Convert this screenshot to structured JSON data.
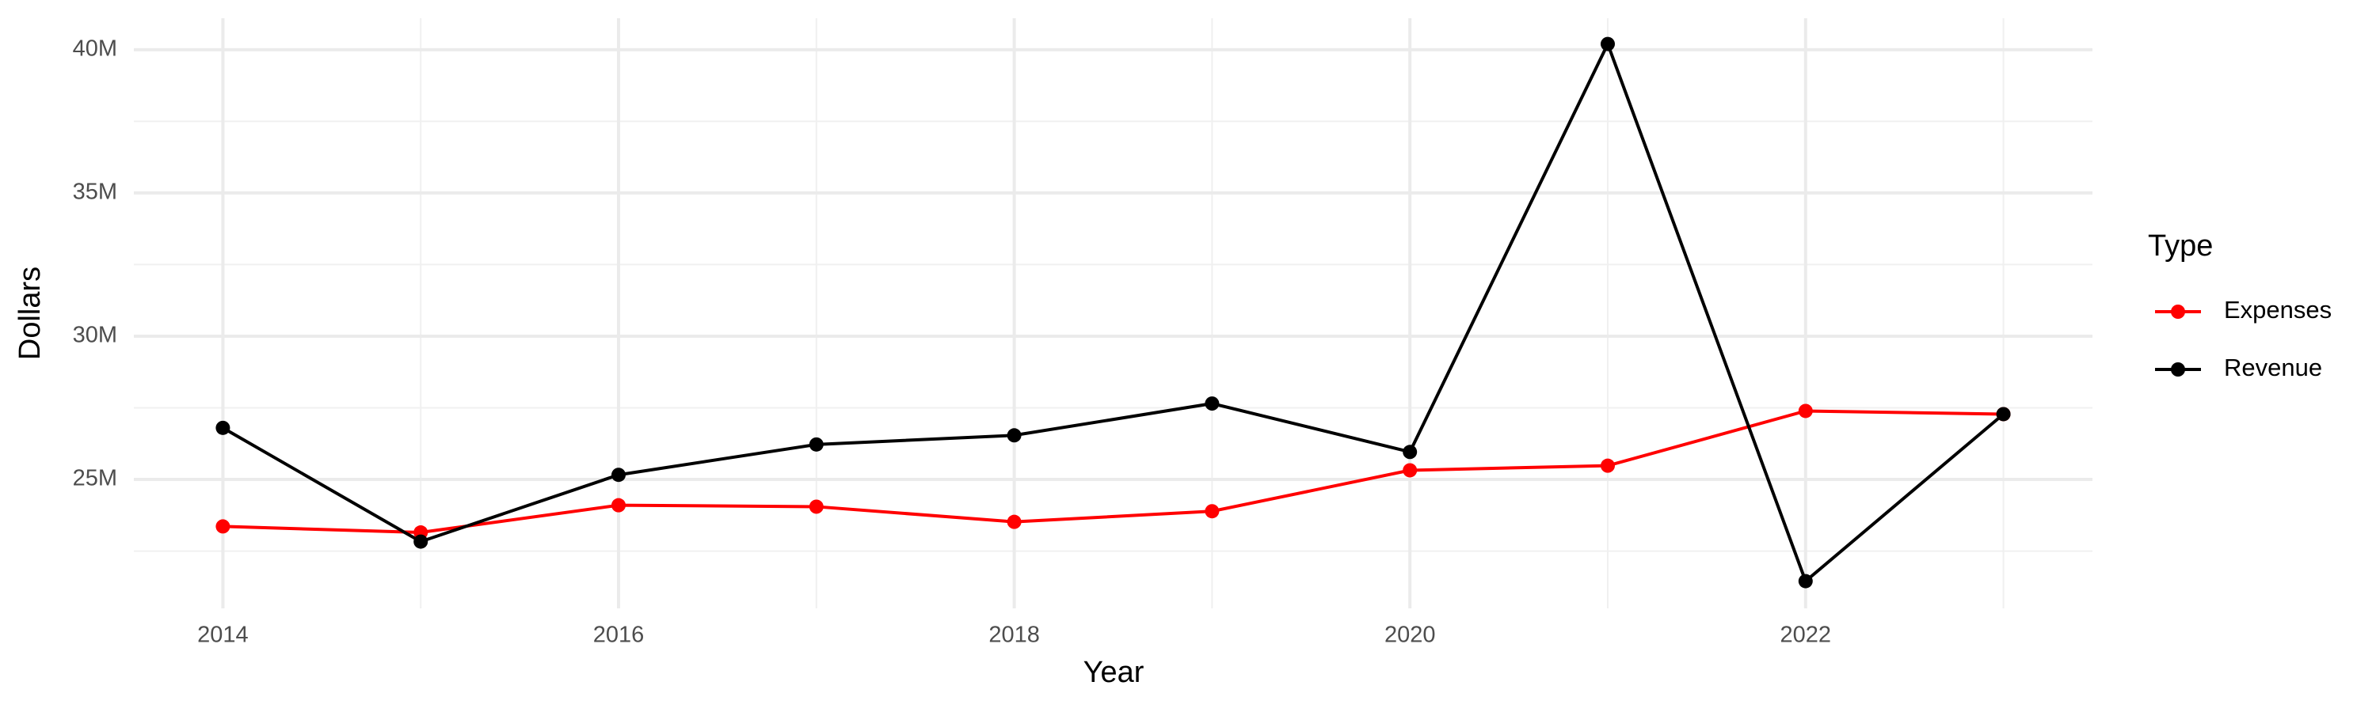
{
  "chart_data": {
    "type": "line",
    "x_label": "Year",
    "y_label": "Dollars",
    "legend_title": "Type",
    "legend_position": "right",
    "x": [
      2014,
      2015,
      2016,
      2017,
      2018,
      2019,
      2020,
      2021,
      2022,
      2023
    ],
    "series": [
      {
        "name": "Expenses",
        "color": "#ff0000",
        "values": [
          23360000,
          23150000,
          24100000,
          24050000,
          23520000,
          23890000,
          25320000,
          25480000,
          27390000,
          27280000
        ]
      },
      {
        "name": "Revenue",
        "color": "#000000",
        "values": [
          26800000,
          22830000,
          25160000,
          26220000,
          26540000,
          27650000,
          25960000,
          40200000,
          21450000,
          27280000
        ]
      }
    ],
    "xlim": [
      2013.55,
      2023.45
    ],
    "xticks": [
      2014,
      2016,
      2018,
      2020,
      2022
    ],
    "xticks_minor": [
      2015,
      2017,
      2019,
      2021,
      2023
    ],
    "ylim": [
      20500000,
      41100000
    ],
    "yticks": [
      {
        "value": 25000000,
        "label": "25M"
      },
      {
        "value": 30000000,
        "label": "30M"
      },
      {
        "value": 35000000,
        "label": "35M"
      },
      {
        "value": 40000000,
        "label": "40M"
      }
    ],
    "yticks_minor": [
      22500000,
      27500000,
      32500000,
      37500000
    ],
    "grid": true
  }
}
